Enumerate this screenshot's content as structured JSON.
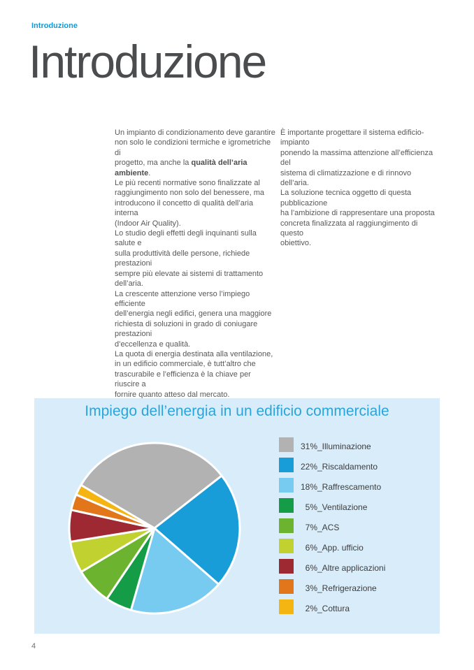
{
  "header": {
    "eyebrow": "Introduzione",
    "title": "Introduzione"
  },
  "intro": {
    "left_column_segments": [
      {
        "text": "Un impianto di condizionamento deve garantire\nnon solo le condizioni termiche e igrometriche di\nprogetto, ma anche la ",
        "bold": false
      },
      {
        "text": "qualità dell’aria ambiente",
        "bold": true
      },
      {
        "text": ".\nLe più recenti normative sono finalizzate al\nraggiungimento non solo del benessere, ma\nintroducono il concetto di qualità dell’aria interna\n(Indoor Air Quality).\nLo studio degli effetti degli inquinanti sulla salute e\nsulla produttività delle persone, richiede prestazioni\nsempre più elevate ai sistemi di trattamento dell’aria.\nLa crescente attenzione verso l’impiego efficiente\ndell’energia negli edifici, genera una maggiore\nrichiesta di soluzioni in grado di coniugare prestazioni\nd’eccellenza e qualità.\nLa quota di energia destinata alla ventilazione,\nin un edificio commerciale, è tutt’altro che\ntrascurabile e l’efficienza è la chiave per riuscire a\nfornire quanto atteso dal mercato.",
        "bold": false
      }
    ],
    "right_column_segments": [
      {
        "text": "È importante progettare il sistema edificio-impianto\nponendo la massima attenzione all’efficienza del\nsistema di climatizzazione e di rinnovo dell’aria.\nLa soluzione tecnica oggetto di questa pubblicazione\nha l’ambizione di rappresentare una proposta\nconcreta finalizzata al raggiungimento di questo\nobiettivo.",
        "bold": false
      }
    ]
  },
  "chart": {
    "title": "Impiego dell’energia in un edificio commerciale",
    "panel_bg": "#d8ecf9",
    "title_color": "#2aa5da",
    "legend": [
      {
        "pct": "31%",
        "name": "_Illuminazione",
        "color": "#b2b2b2"
      },
      {
        "pct": "22%",
        "name": "_Riscaldamento",
        "color": "#189dd9"
      },
      {
        "pct": "18%",
        "name": "_Raffrescamento",
        "color": "#77cbf0"
      },
      {
        "pct": "5%",
        "name": "_Ventilazione",
        "color": "#149c47"
      },
      {
        "pct": "7%",
        "name": "_ACS",
        "color": "#6cb32f"
      },
      {
        "pct": "6%",
        "name": "_App. ufficio",
        "color": "#c1d12f"
      },
      {
        "pct": "6%",
        "name": "_Altre applicazioni",
        "color": "#9f2933"
      },
      {
        "pct": "3%",
        "name": "_Refrigerazione",
        "color": "#e2761b"
      },
      {
        "pct": "2%",
        "name": "_Cottura",
        "color": "#f4b412"
      }
    ]
  },
  "chart_data": {
    "type": "pie",
    "title": "Impiego dell’energia in un edificio commerciale",
    "labels": [
      "Illuminazione",
      "Riscaldamento",
      "Raffrescamento",
      "Ventilazione",
      "ACS",
      "App. ufficio",
      "Altre applicazioni",
      "Refrigerazione",
      "Cottura"
    ],
    "values": [
      31,
      22,
      18,
      5,
      7,
      6,
      6,
      3,
      2
    ],
    "colors": [
      "#b2b2b2",
      "#189dd9",
      "#77cbf0",
      "#149c47",
      "#6cb32f",
      "#c1d12f",
      "#9f2933",
      "#e2761b",
      "#f4b412"
    ],
    "start_angle_deg": 149.6,
    "direction": "clockwise",
    "legend_position": "right",
    "slice_separator_color": "#ffffff"
  },
  "footer": {
    "page_number": "4"
  }
}
